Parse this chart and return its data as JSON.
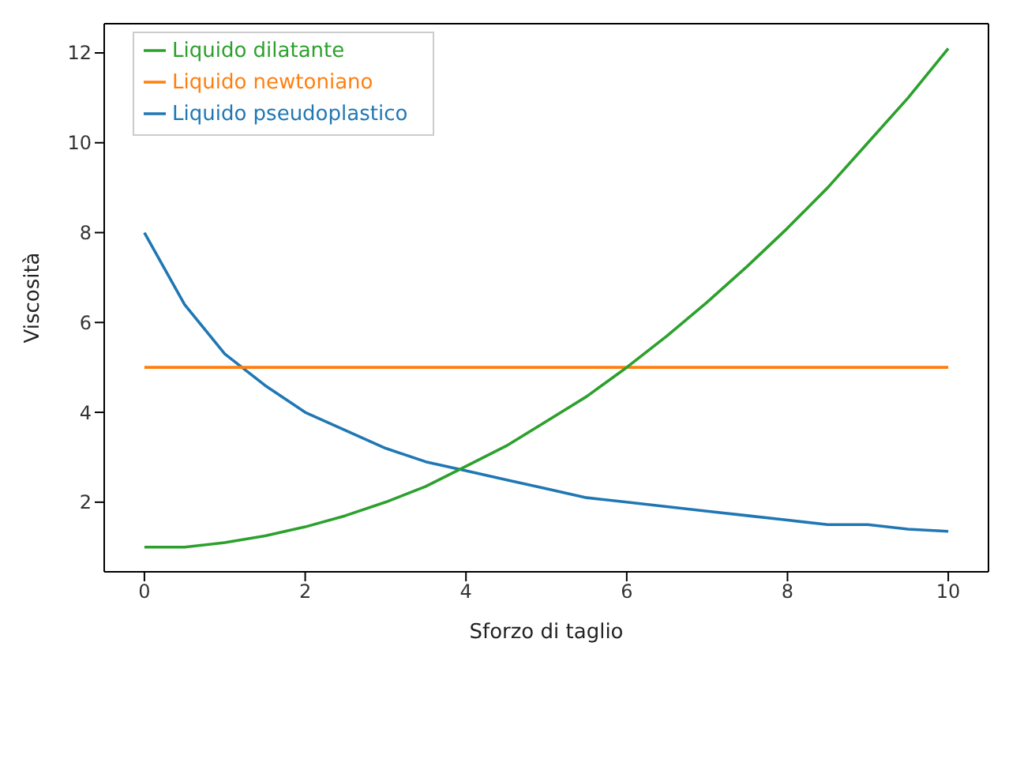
{
  "chart_data": {
    "type": "line",
    "xlabel": "Sforzo di taglio",
    "ylabel": "Viscosità",
    "x": [
      0,
      0.5,
      1,
      1.5,
      2,
      2.5,
      3,
      3.5,
      4,
      4.5,
      5,
      5.5,
      6,
      6.5,
      7,
      7.5,
      8,
      8.5,
      9,
      9.5,
      10
    ],
    "series": [
      {
        "name": "Liquido pseudoplastico",
        "color": "#1f77b4",
        "values": [
          8,
          6.4,
          5.3,
          4.6,
          4,
          3.6,
          3.2,
          2.9,
          2.7,
          2.5,
          2.3,
          2.1,
          2,
          1.9,
          1.8,
          1.7,
          1.6,
          1.5,
          1.5,
          1.4,
          1.35
        ]
      },
      {
        "name": "Liquido newtoniano",
        "color": "#ff7f0e",
        "values": [
          5,
          5,
          5,
          5,
          5,
          5,
          5,
          5,
          5,
          5,
          5,
          5,
          5,
          5,
          5,
          5,
          5,
          5,
          5,
          5,
          5
        ]
      },
      {
        "name": "Liquido dilatante",
        "color": "#2ca02c",
        "values": [
          1,
          1,
          1.1,
          1.25,
          1.45,
          1.7,
          2,
          2.35,
          2.8,
          3.25,
          3.8,
          4.35,
          5,
          5.7,
          6.45,
          7.25,
          8.1,
          9,
          10,
          11,
          12.1
        ]
      }
    ],
    "xlim": [
      -0.5,
      10.5
    ],
    "ylim": [
      0.45,
      12.65
    ],
    "xticks": [
      0,
      2,
      4,
      6,
      8,
      10
    ],
    "yticks": [
      2,
      4,
      6,
      8,
      10,
      12
    ],
    "legend": "top left",
    "grid": false
  }
}
